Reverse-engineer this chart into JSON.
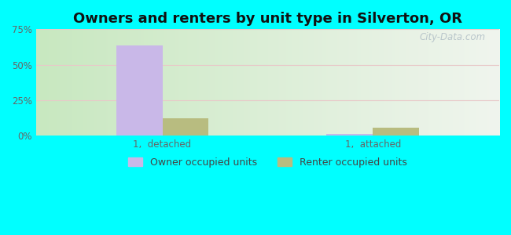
{
  "title": "Owners and renters by unit type in Silverton, OR",
  "categories": [
    "1,  detached",
    "1,  attached"
  ],
  "owner_values": [
    63.5,
    1.2
  ],
  "renter_values": [
    12.5,
    5.5
  ],
  "owner_color": "#c9b8e8",
  "renter_color": "#b8bc80",
  "ylim": [
    0,
    75
  ],
  "yticks": [
    0,
    25,
    50,
    75
  ],
  "ytick_labels": [
    "0%",
    "25%",
    "50%",
    "75%"
  ],
  "bar_width": 0.22,
  "outer_bg": "#00ffff",
  "bg_left": "#c8e8c0",
  "bg_right": "#f0f5ee",
  "grid_color": "#e8c8c8",
  "title_fontsize": 13,
  "tick_fontsize": 8.5,
  "legend_fontsize": 9,
  "watermark": "City-Data.com",
  "watermark_color": "#b0bec5"
}
